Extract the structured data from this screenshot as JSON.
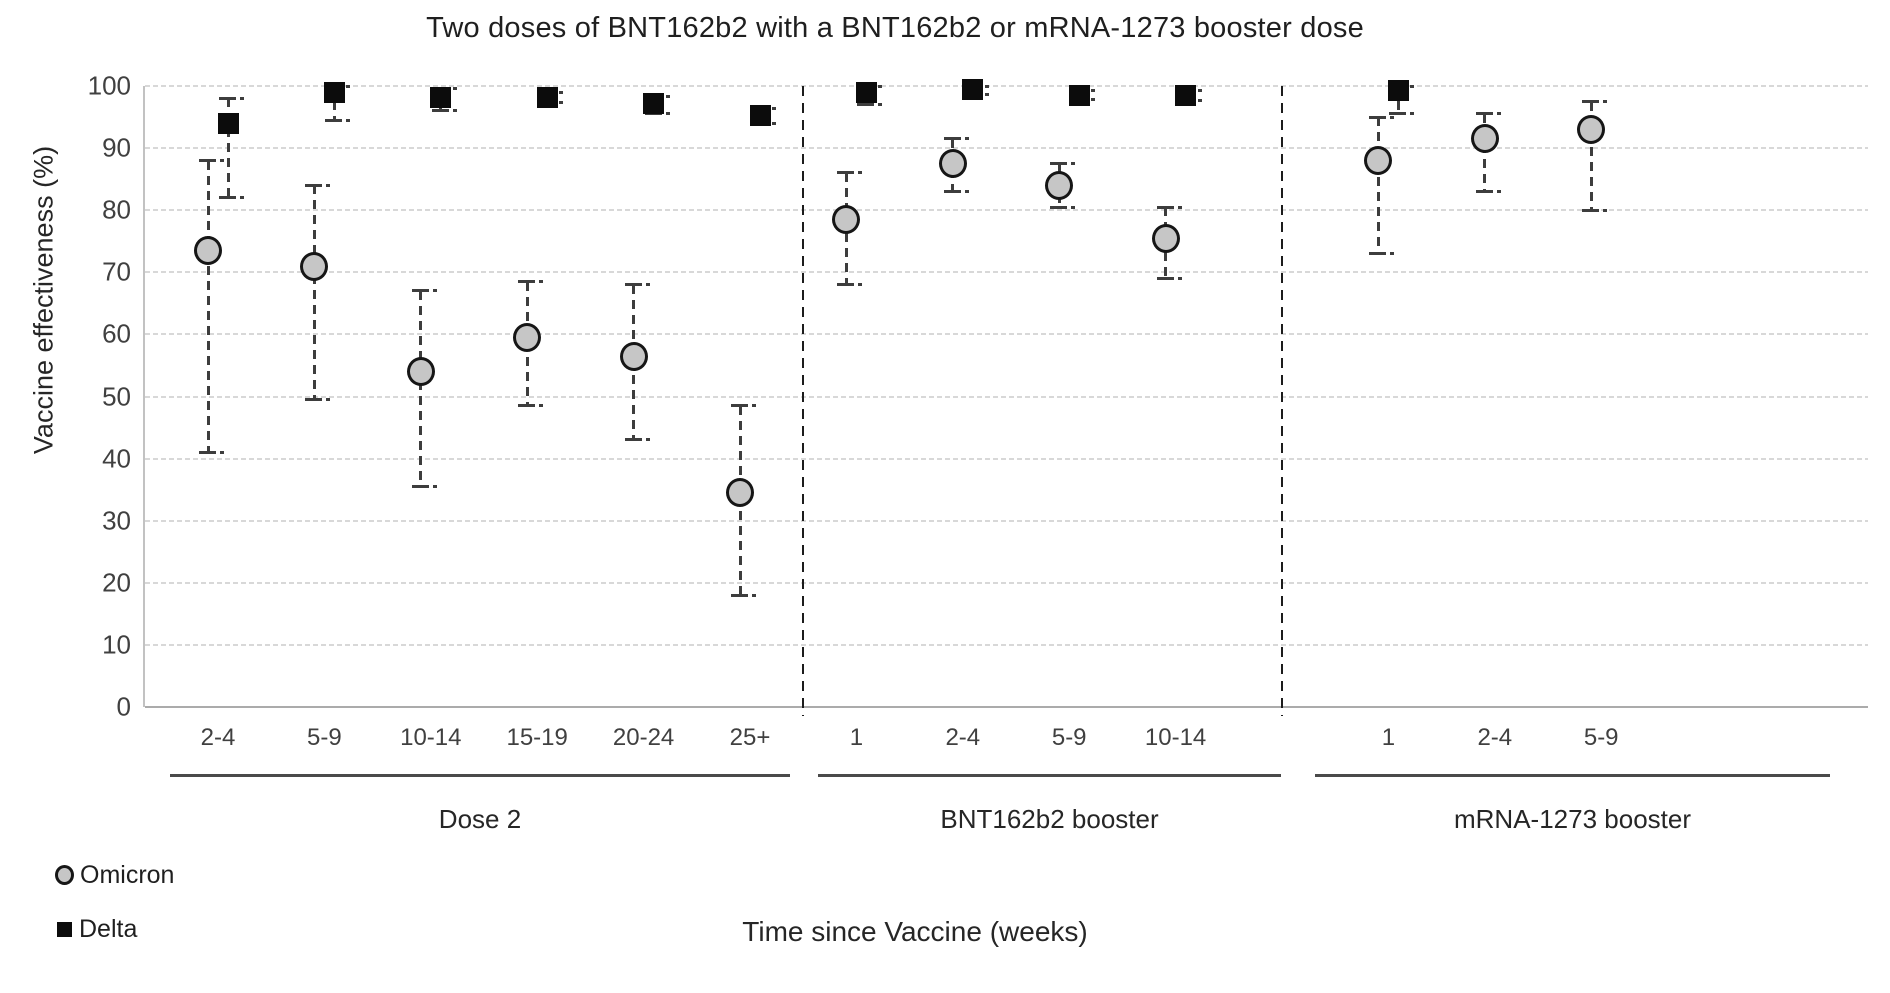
{
  "title": "Two doses of BNT162b2 with a BNT162b2 or mRNA-1273 booster dose",
  "y_axis": {
    "label": "Vaccine effectiveness (%)",
    "min": 0,
    "max": 100,
    "ticks": [
      0,
      10,
      20,
      30,
      40,
      50,
      60,
      70,
      80,
      90,
      100
    ]
  },
  "x_axis": {
    "label": "Time since Vaccine (weeks)"
  },
  "legend": [
    {
      "label": "Omicron",
      "marker": "circle",
      "fill": "#c6c6c6"
    },
    {
      "label": "Delta",
      "marker": "square",
      "fill": "#0c0c0c"
    }
  ],
  "colors": {
    "omicron_fill": "#c6c6c6",
    "marker_stroke": "#161616",
    "delta_fill": "#0c0c0c",
    "error_bar": "#3d3d3d",
    "gridline": "#d8d8d8",
    "axis_line": "#ababab",
    "separator": "#1c1c1c",
    "tick_text": "#404040",
    "title_text": "#1f1f1f"
  },
  "chart_data": {
    "type": "scatter",
    "title": "Two doses of BNT162b2 with a BNT162b2 or mRNA-1273 booster dose",
    "xlabel": "Time since Vaccine (weeks)",
    "ylabel": "Vaccine effectiveness (%)",
    "ylim": [
      0,
      100
    ],
    "grid": true,
    "legend_position": "bottom-left",
    "error_bars": "95% CI, dashed",
    "series_names": [
      "Omicron",
      "Delta"
    ],
    "groups": [
      {
        "label": "Dose 2",
        "categories": [
          "2-4",
          "5-9",
          "10-14",
          "15-19",
          "20-24",
          "25+"
        ],
        "omicron": [
          {
            "v": 73.5,
            "lo": 41.0,
            "hi": 88.0
          },
          {
            "v": 71.0,
            "lo": 49.5,
            "hi": 84.0
          },
          {
            "v": 54.0,
            "lo": 35.5,
            "hi": 67.0
          },
          {
            "v": 59.5,
            "lo": 48.5,
            "hi": 68.5
          },
          {
            "v": 56.5,
            "lo": 43.0,
            "hi": 68.0
          },
          {
            "v": 34.5,
            "lo": 18.0,
            "hi": 48.5
          }
        ],
        "delta": [
          {
            "v": 94.0,
            "lo": 82.0,
            "hi": 98.0
          },
          {
            "v": 99.0,
            "lo": 94.5,
            "hi": 100.0
          },
          {
            "v": 98.2,
            "lo": 96.0,
            "hi": 99.6
          },
          {
            "v": 98.2,
            "lo": 97.4,
            "hi": 99.0
          },
          {
            "v": 97.2,
            "lo": 95.5,
            "hi": 98.3
          },
          {
            "v": 95.2,
            "lo": 94.0,
            "hi": 96.3
          }
        ]
      },
      {
        "label": "BNT162b2 booster",
        "categories": [
          "1",
          "2-4",
          "5-9",
          "10-14"
        ],
        "omicron": [
          {
            "v": 78.5,
            "lo": 68.0,
            "hi": 86.0
          },
          {
            "v": 87.5,
            "lo": 83.0,
            "hi": 91.5
          },
          {
            "v": 84.0,
            "lo": 80.5,
            "hi": 87.5
          },
          {
            "v": 75.5,
            "lo": 69.0,
            "hi": 80.5
          }
        ],
        "delta": [
          {
            "v": 99.0,
            "lo": 97.0,
            "hi": 100.0
          },
          {
            "v": 99.4,
            "lo": 98.6,
            "hi": 100.0
          },
          {
            "v": 98.5,
            "lo": 97.8,
            "hi": 99.3
          },
          {
            "v": 98.4,
            "lo": 97.6,
            "hi": 99.2
          }
        ]
      },
      {
        "label": "mRNA-1273 booster",
        "categories": [
          "1",
          "2-4",
          "5-9"
        ],
        "omicron": [
          {
            "v": 88.0,
            "lo": 73.0,
            "hi": 95.0
          },
          {
            "v": 91.5,
            "lo": 83.0,
            "hi": 95.5
          },
          {
            "v": 93.0,
            "lo": 80.0,
            "hi": 97.5
          }
        ],
        "delta": [
          {
            "v": 99.2,
            "lo": 95.5,
            "hi": 100.0
          },
          null,
          null
        ]
      }
    ]
  }
}
